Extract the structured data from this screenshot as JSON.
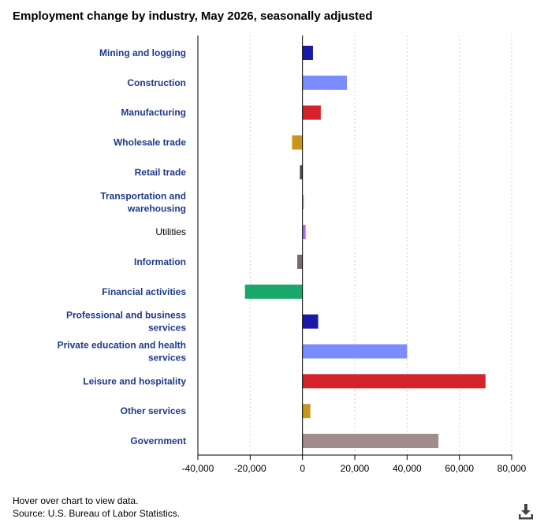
{
  "title": "Employment change by industry, May 2026, seasonally adjusted",
  "footer": {
    "hover_note": "Hover over chart to view data.",
    "source": "Source: U.S. Bureau of Labor Statistics."
  },
  "download_icon": "download-icon",
  "chart_data": {
    "type": "bar",
    "orientation": "horizontal",
    "title": "Employment change by industry, May 2026, seasonally adjusted",
    "xlim": [
      -40000,
      80000
    ],
    "xticks": [
      -40000,
      -20000,
      0,
      20000,
      40000,
      60000,
      80000
    ],
    "xtick_labels": [
      "-40,000",
      "-20,000",
      "0",
      "20,000",
      "40,000",
      "60,000",
      "80,000"
    ],
    "grid": "vertical dotted",
    "categories": [
      "Mining and logging",
      "Construction",
      "Manufacturing",
      "Wholesale trade",
      "Retail trade",
      "Transportation and warehousing",
      "Utilities",
      "Information",
      "Financial activities",
      "Professional and business services",
      "Private education and health services",
      "Leisure and hospitality",
      "Other services",
      "Government"
    ],
    "category_lines": [
      [
        "Mining and logging"
      ],
      [
        "Construction"
      ],
      [
        "Manufacturing"
      ],
      [
        "Wholesale trade"
      ],
      [
        "Retail trade"
      ],
      [
        "Transportation and",
        "warehousing"
      ],
      [
        "Utilities"
      ],
      [
        "Information"
      ],
      [
        "Financial activities"
      ],
      [
        "Professional and business",
        "services"
      ],
      [
        "Private education and health",
        "services"
      ],
      [
        "Leisure and hospitality"
      ],
      [
        "Other services"
      ],
      [
        "Government"
      ]
    ],
    "label_bold": [
      true,
      true,
      true,
      true,
      true,
      true,
      false,
      true,
      true,
      true,
      true,
      true,
      true,
      true
    ],
    "values": [
      4000,
      17000,
      7000,
      -4000,
      -1000,
      500,
      1200,
      -2000,
      -22000,
      6000,
      40000,
      70000,
      3000,
      52000
    ],
    "colors": [
      "#1a1aa6",
      "#7b8cff",
      "#d4232b",
      "#c9961a",
      "#4a4a4a",
      "#f08080",
      "#b266ff",
      "#7a6a6a",
      "#1aa86a",
      "#1a1aa6",
      "#7b8cff",
      "#d4232b",
      "#c9961a",
      "#a08c8c"
    ]
  }
}
